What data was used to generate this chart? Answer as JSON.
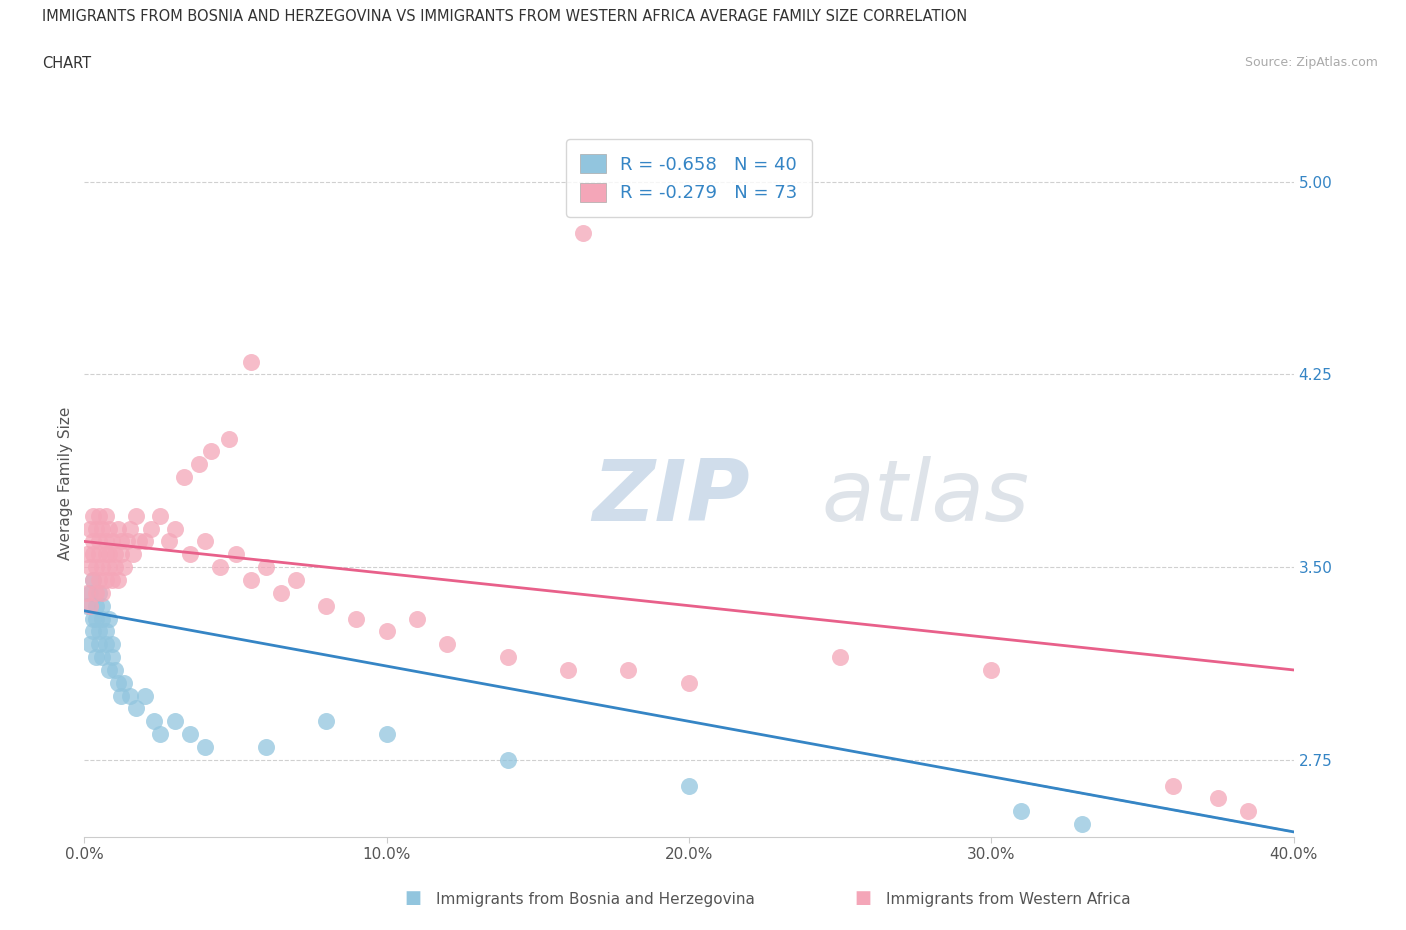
{
  "title_line1": "IMMIGRANTS FROM BOSNIA AND HERZEGOVINA VS IMMIGRANTS FROM WESTERN AFRICA AVERAGE FAMILY SIZE CORRELATION",
  "title_line2": "CHART",
  "source": "Source: ZipAtlas.com",
  "ylabel": "Average Family Size",
  "xlim": [
    0.0,
    0.4
  ],
  "ylim": [
    2.45,
    5.2
  ],
  "yticks": [
    2.75,
    3.5,
    4.25,
    5.0
  ],
  "xticks": [
    0.0,
    0.1,
    0.2,
    0.3,
    0.4
  ],
  "xticklabels": [
    "0.0%",
    "10.0%",
    "20.0%",
    "30.0%",
    "40.0%"
  ],
  "yticklabels": [
    "2.75",
    "3.50",
    "4.25",
    "5.00"
  ],
  "blue_color": "#92c5de",
  "pink_color": "#f4a6b8",
  "blue_line_color": "#3585c5",
  "pink_line_color": "#e8608a",
  "blue_R": -0.658,
  "blue_N": 40,
  "pink_R": -0.279,
  "pink_N": 73,
  "watermark_zip": "ZIP",
  "watermark_atlas": "atlas",
  "legend_label_blue": "Immigrants from Bosnia and Herzegovina",
  "legend_label_pink": "Immigrants from Western Africa",
  "background_color": "#ffffff",
  "grid_color": "#d0d0d0",
  "blue_scatter_x": [
    0.001,
    0.002,
    0.002,
    0.003,
    0.003,
    0.003,
    0.004,
    0.004,
    0.004,
    0.005,
    0.005,
    0.005,
    0.006,
    0.006,
    0.006,
    0.007,
    0.007,
    0.008,
    0.008,
    0.009,
    0.009,
    0.01,
    0.011,
    0.012,
    0.013,
    0.015,
    0.017,
    0.02,
    0.023,
    0.025,
    0.03,
    0.035,
    0.04,
    0.06,
    0.08,
    0.1,
    0.14,
    0.2,
    0.31,
    0.33
  ],
  "blue_scatter_y": [
    3.35,
    3.2,
    3.4,
    3.3,
    3.25,
    3.45,
    3.3,
    3.15,
    3.35,
    3.25,
    3.4,
    3.2,
    3.3,
    3.15,
    3.35,
    3.2,
    3.25,
    3.1,
    3.3,
    3.2,
    3.15,
    3.1,
    3.05,
    3.0,
    3.05,
    3.0,
    2.95,
    3.0,
    2.9,
    2.85,
    2.9,
    2.85,
    2.8,
    2.8,
    2.9,
    2.85,
    2.75,
    2.65,
    2.55,
    2.5
  ],
  "pink_scatter_x": [
    0.001,
    0.001,
    0.002,
    0.002,
    0.002,
    0.003,
    0.003,
    0.003,
    0.003,
    0.004,
    0.004,
    0.004,
    0.005,
    0.005,
    0.005,
    0.005,
    0.006,
    0.006,
    0.006,
    0.007,
    0.007,
    0.007,
    0.007,
    0.008,
    0.008,
    0.008,
    0.009,
    0.009,
    0.01,
    0.01,
    0.011,
    0.011,
    0.012,
    0.012,
    0.013,
    0.014,
    0.015,
    0.016,
    0.017,
    0.018,
    0.02,
    0.022,
    0.025,
    0.028,
    0.03,
    0.035,
    0.04,
    0.045,
    0.05,
    0.055,
    0.06,
    0.065,
    0.07,
    0.08,
    0.09,
    0.1,
    0.11,
    0.12,
    0.14,
    0.16,
    0.18,
    0.2,
    0.25,
    0.3,
    0.36,
    0.375,
    0.385
  ],
  "pink_scatter_y": [
    3.4,
    3.55,
    3.35,
    3.5,
    3.65,
    3.45,
    3.6,
    3.7,
    3.55,
    3.5,
    3.65,
    3.4,
    3.55,
    3.7,
    3.45,
    3.6,
    3.5,
    3.65,
    3.4,
    3.55,
    3.7,
    3.45,
    3.6,
    3.55,
    3.65,
    3.5,
    3.6,
    3.45,
    3.55,
    3.5,
    3.65,
    3.45,
    3.6,
    3.55,
    3.5,
    3.6,
    3.65,
    3.55,
    3.7,
    3.6,
    3.6,
    3.65,
    3.7,
    3.6,
    3.65,
    3.55,
    3.6,
    3.5,
    3.55,
    3.45,
    3.5,
    3.4,
    3.45,
    3.35,
    3.3,
    3.25,
    3.3,
    3.2,
    3.15,
    3.1,
    3.1,
    3.05,
    3.15,
    3.1,
    2.65,
    2.6,
    2.55
  ],
  "pink_high_x": [
    0.033,
    0.038,
    0.042,
    0.048,
    0.055,
    0.165
  ],
  "pink_high_y": [
    3.85,
    3.9,
    3.95,
    4.0,
    4.3,
    4.8
  ],
  "blue_trend_x0": 0.0,
  "blue_trend_y0": 3.33,
  "blue_trend_x1": 0.4,
  "blue_trend_y1": 2.47,
  "pink_trend_x0": 0.0,
  "pink_trend_y0": 3.6,
  "pink_trend_x1": 0.4,
  "pink_trend_y1": 3.1
}
